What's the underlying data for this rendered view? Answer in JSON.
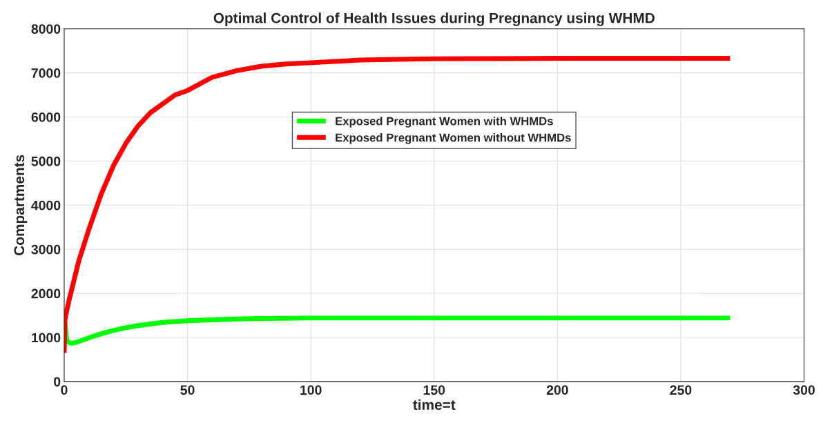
{
  "chart_data": {
    "type": "line",
    "title": "Optimal Control of Health Issues during Pregnancy using WHMD",
    "xlabel": "time=t",
    "ylabel": "Compartments",
    "xlim": [
      0,
      300
    ],
    "xticks": [
      0,
      50,
      100,
      150,
      200,
      250,
      300
    ],
    "ylim": [
      0,
      8000
    ],
    "yticks": [
      0,
      1000,
      2000,
      3000,
      4000,
      5000,
      6000,
      7000,
      8000
    ],
    "grid": true,
    "legend": "top",
    "line_style": "solid",
    "series": [
      {
        "name": "Exposed Pregnant Women with WHMDs",
        "color": "#00ff00",
        "x": [
          0.3,
          1,
          2,
          3,
          5,
          8,
          12,
          16,
          20,
          25,
          30,
          40,
          50,
          60,
          70,
          80,
          100,
          120,
          150,
          200,
          250,
          270
        ],
        "values": [
          1350,
          950,
          880,
          870,
          890,
          950,
          1030,
          1100,
          1160,
          1220,
          1270,
          1340,
          1380,
          1400,
          1420,
          1430,
          1440,
          1440,
          1440,
          1440,
          1440,
          1440
        ]
      },
      {
        "name": "Exposed Pregnant Women without WHMDs",
        "color": "#ff0000",
        "x": [
          0,
          0.3,
          1,
          2,
          4,
          6,
          8,
          10,
          15,
          20,
          25,
          30,
          35,
          40,
          45,
          50,
          60,
          70,
          80,
          90,
          100,
          120,
          150,
          200,
          250,
          270
        ],
        "values": [
          650,
          1400,
          1600,
          1850,
          2300,
          2750,
          3100,
          3450,
          4250,
          4900,
          5400,
          5800,
          6100,
          6300,
          6500,
          6600,
          6900,
          7050,
          7150,
          7200,
          7230,
          7290,
          7320,
          7330,
          7330,
          7330
        ]
      }
    ]
  }
}
